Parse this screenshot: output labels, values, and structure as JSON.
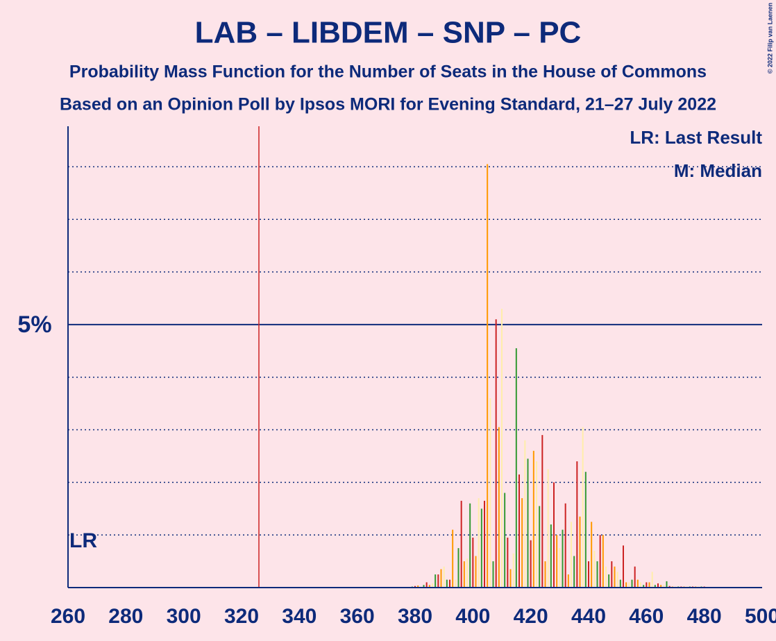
{
  "chart_data": {
    "type": "bar",
    "title": "LAB – LIBDEM – SNP – PC",
    "subtitle": "Probability Mass Function for the Number of Seats in the House of Commons",
    "subtitle2": "Based on an Opinion Poll by Ipsos MORI for Evening Standard, 21–27 July 2022",
    "copyright": "© 2022 Filip van Laenen",
    "legend": [
      "LR: Last Result",
      "M: Median"
    ],
    "last_result": 326,
    "last_result_label": "LR",
    "x": [
      378,
      379,
      380,
      381,
      382,
      383,
      384,
      385,
      386,
      387,
      388,
      389,
      390,
      391,
      392,
      393,
      394,
      395,
      396,
      397,
      398,
      399,
      400,
      401,
      402,
      403,
      404,
      405,
      406,
      407,
      408,
      409,
      410,
      411,
      412,
      413,
      414,
      415,
      416,
      417,
      418,
      419,
      420,
      421,
      422,
      423,
      424,
      425,
      426,
      427,
      428,
      429,
      430,
      431,
      432,
      433,
      434,
      435,
      436,
      437,
      438,
      439,
      440,
      441,
      442,
      443,
      444,
      445,
      446,
      447,
      448,
      449,
      450,
      451,
      452,
      453,
      454,
      455,
      456,
      457,
      458,
      459,
      460,
      461,
      462,
      463,
      464,
      465,
      466,
      467,
      468,
      469,
      470,
      471,
      472,
      473,
      474,
      475,
      476,
      477,
      478,
      479,
      480,
      481,
      482,
      483,
      484,
      485,
      486,
      487,
      488,
      489,
      490
    ],
    "values": [
      0.01,
      0.02,
      0.03,
      0.04,
      0.02,
      0.05,
      0.1,
      0.05,
      0.08,
      0.25,
      0.25,
      0.35,
      0.4,
      0.15,
      0.15,
      1.1,
      0.15,
      0.75,
      1.65,
      0.5,
      0.55,
      1.6,
      0.95,
      0.6,
      1.7,
      1.5,
      1.65,
      8.05,
      3.6,
      0.5,
      5.1,
      3.05,
      5.3,
      1.8,
      0.95,
      0.35,
      0.65,
      4.55,
      2.15,
      1.7,
      2.8,
      2.45,
      0.9,
      2.6,
      2.4,
      1.55,
      2.9,
      0.5,
      2.25,
      1.2,
      2.0,
      1.0,
      0.75,
      1.1,
      1.6,
      0.25,
      1.25,
      0.6,
      2.4,
      1.35,
      3.05,
      2.2,
      0.5,
      1.25,
      0.7,
      0.5,
      1.0,
      1.0,
      0.4,
      0.25,
      0.5,
      0.4,
      0.3,
      0.15,
      0.8,
      0.1,
      0.1,
      0.15,
      0.4,
      0.15,
      0.1,
      0.05,
      0.1,
      0.1,
      0.3,
      0.05,
      0.08,
      0.05,
      0.05,
      0.12,
      0.03,
      0.02,
      0.02,
      0.02,
      0.02,
      0.02,
      0.02,
      0.02,
      0.02,
      0.02,
      0.02,
      0.02,
      0.02,
      0.01,
      0.01,
      0.01,
      0.01,
      0.01,
      0.01,
      0.01,
      0.01,
      0.01,
      0.01
    ],
    "colors": [
      "#ffeeaa",
      "#339933",
      "#cc2222",
      "#ff9900"
    ],
    "xlim": [
      260,
      500
    ],
    "xticks": [
      260,
      280,
      300,
      320,
      340,
      360,
      380,
      400,
      420,
      440,
      460,
      480,
      500
    ],
    "ylim": [
      0,
      8.77
    ],
    "yticks": [
      {
        "value": 5,
        "label": "5%"
      }
    ],
    "minor_yticks": [
      1,
      2,
      3,
      4,
      6,
      7,
      8
    ]
  }
}
